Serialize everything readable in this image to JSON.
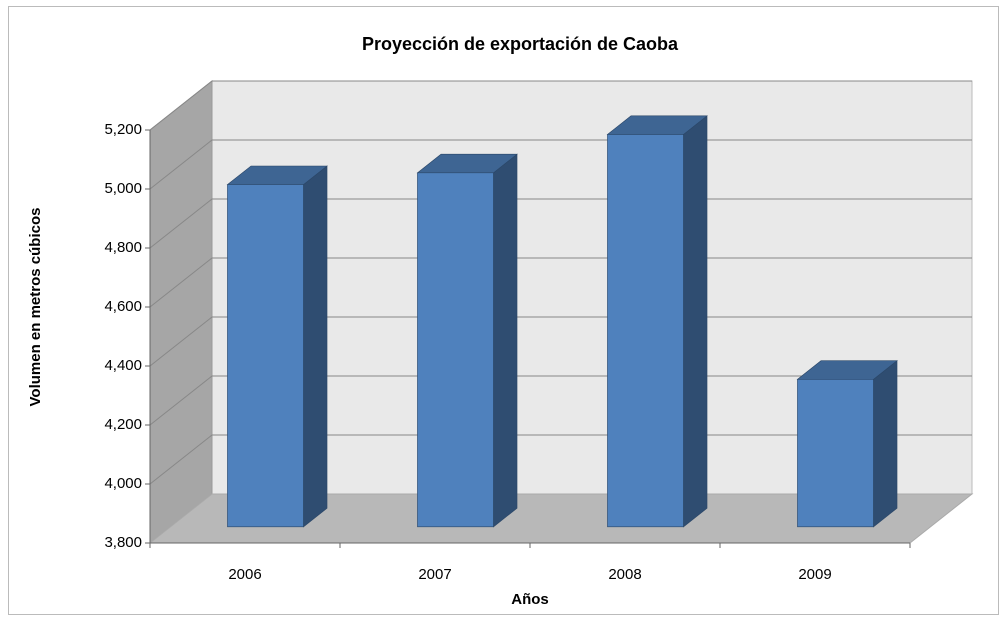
{
  "chart_data": {
    "type": "bar3d",
    "title": "Proyección de exportación de Caoba",
    "x_label": "Años",
    "y_label": "Volumen en metros cúbicos",
    "categories": [
      "2006",
      "2007",
      "2008",
      "2009"
    ],
    "values": [
      4960,
      5000,
      5130,
      4300
    ],
    "color": "#4f81bd",
    "ylim": [
      3800,
      5200
    ],
    "yticks": [
      {
        "value": 3800,
        "label": "3,800"
      },
      {
        "value": 4000,
        "label": "4,000"
      },
      {
        "value": 4200,
        "label": "4,200"
      },
      {
        "value": 4400,
        "label": "4,400"
      },
      {
        "value": 4600,
        "label": "4,600"
      },
      {
        "value": 4800,
        "label": "4,800"
      },
      {
        "value": 5000,
        "label": "5,000"
      },
      {
        "value": 5200,
        "label": "5,200"
      }
    ],
    "grid": true
  }
}
